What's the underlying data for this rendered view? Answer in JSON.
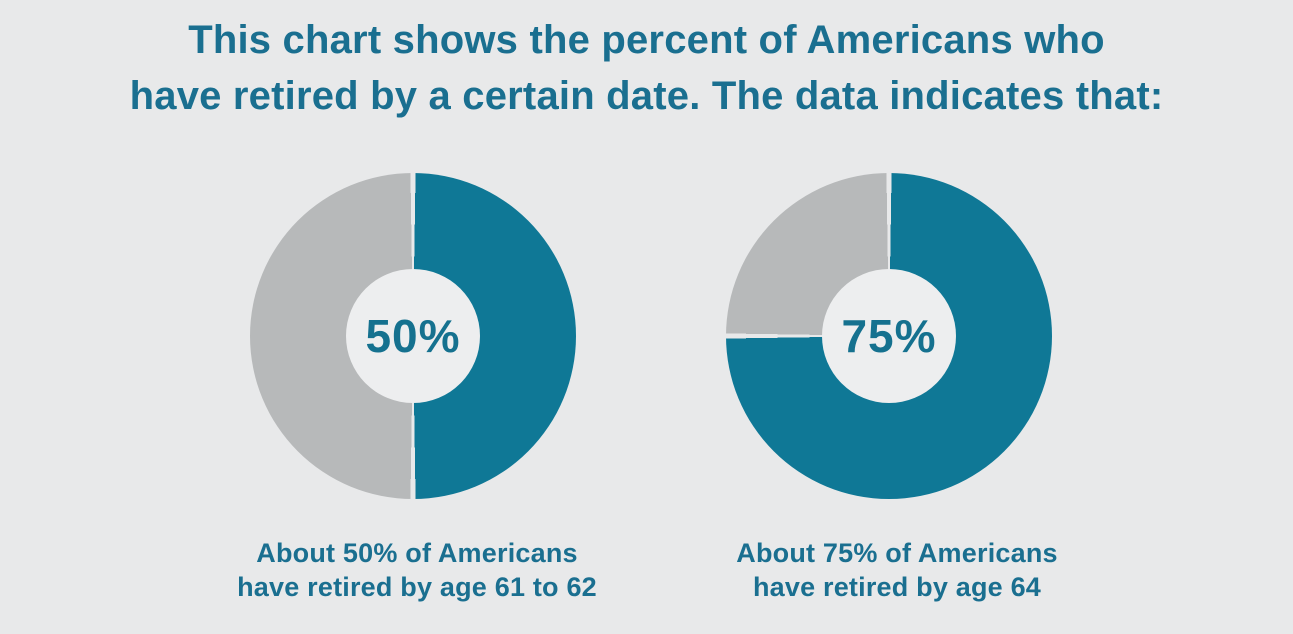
{
  "page": {
    "background_color": "#E8E9EA",
    "title_line1": "This chart shows the percent of Americans who",
    "title_line2": "have retired by a certain date. The data indicates that:"
  },
  "chart_data": {
    "type": "pie",
    "subtype": "donut",
    "title": "This chart shows the percent of Americans who have retired by a certain date. The data indicates that:",
    "legend_position": "none",
    "colors": {
      "filled": "#0F7896",
      "unfilled": "#B7B9BA",
      "hole": "#EDEEEF",
      "gap": "#E8E9EA",
      "text": "#1A6F90"
    },
    "charts": [
      {
        "center_label": "50%",
        "value_pct": 50,
        "remainder_pct": 50,
        "start_angle_deg": 0,
        "direction": "clockwise",
        "caption": [
          "About 50% of Americans",
          "have retired by age 61 to 62"
        ]
      },
      {
        "center_label": "75%",
        "value_pct": 75,
        "remainder_pct": 25,
        "start_angle_deg": 0,
        "direction": "clockwise",
        "caption": [
          "About 75% of Americans",
          "have retired by age 64"
        ]
      }
    ]
  }
}
